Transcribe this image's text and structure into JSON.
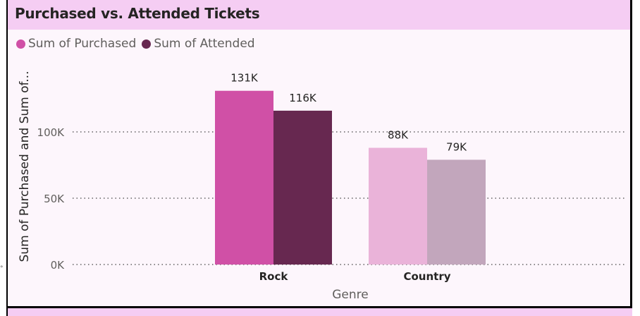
{
  "colors": {
    "purchased": "#d050a6",
    "attended": "#672850",
    "purchased_faded": "#eab3d9",
    "attended_faded": "#c2a6bc",
    "title_band": "#f5cdf3"
  },
  "chart_data": {
    "type": "bar",
    "title": "Purchased vs. Attended Tickets",
    "xlabel": "Genre",
    "ylabel": "Sum of Purchased and Sum of...",
    "categories": [
      "Rock",
      "Country"
    ],
    "series": [
      {
        "name": "Sum of Purchased",
        "values": [
          131000,
          88000
        ]
      },
      {
        "name": "Sum of Attended",
        "values": [
          116000,
          79000
        ]
      }
    ],
    "data_labels": [
      [
        "131K",
        "88K"
      ],
      [
        "116K",
        "79K"
      ]
    ],
    "highlighted_category": "Rock",
    "ylim": [
      0,
      140000
    ],
    "yticks": [
      {
        "value": 0,
        "label": "0K"
      },
      {
        "value": 50000,
        "label": "50K"
      },
      {
        "value": 100000,
        "label": "100K"
      }
    ],
    "grid": true,
    "legend_position": "top-left"
  }
}
